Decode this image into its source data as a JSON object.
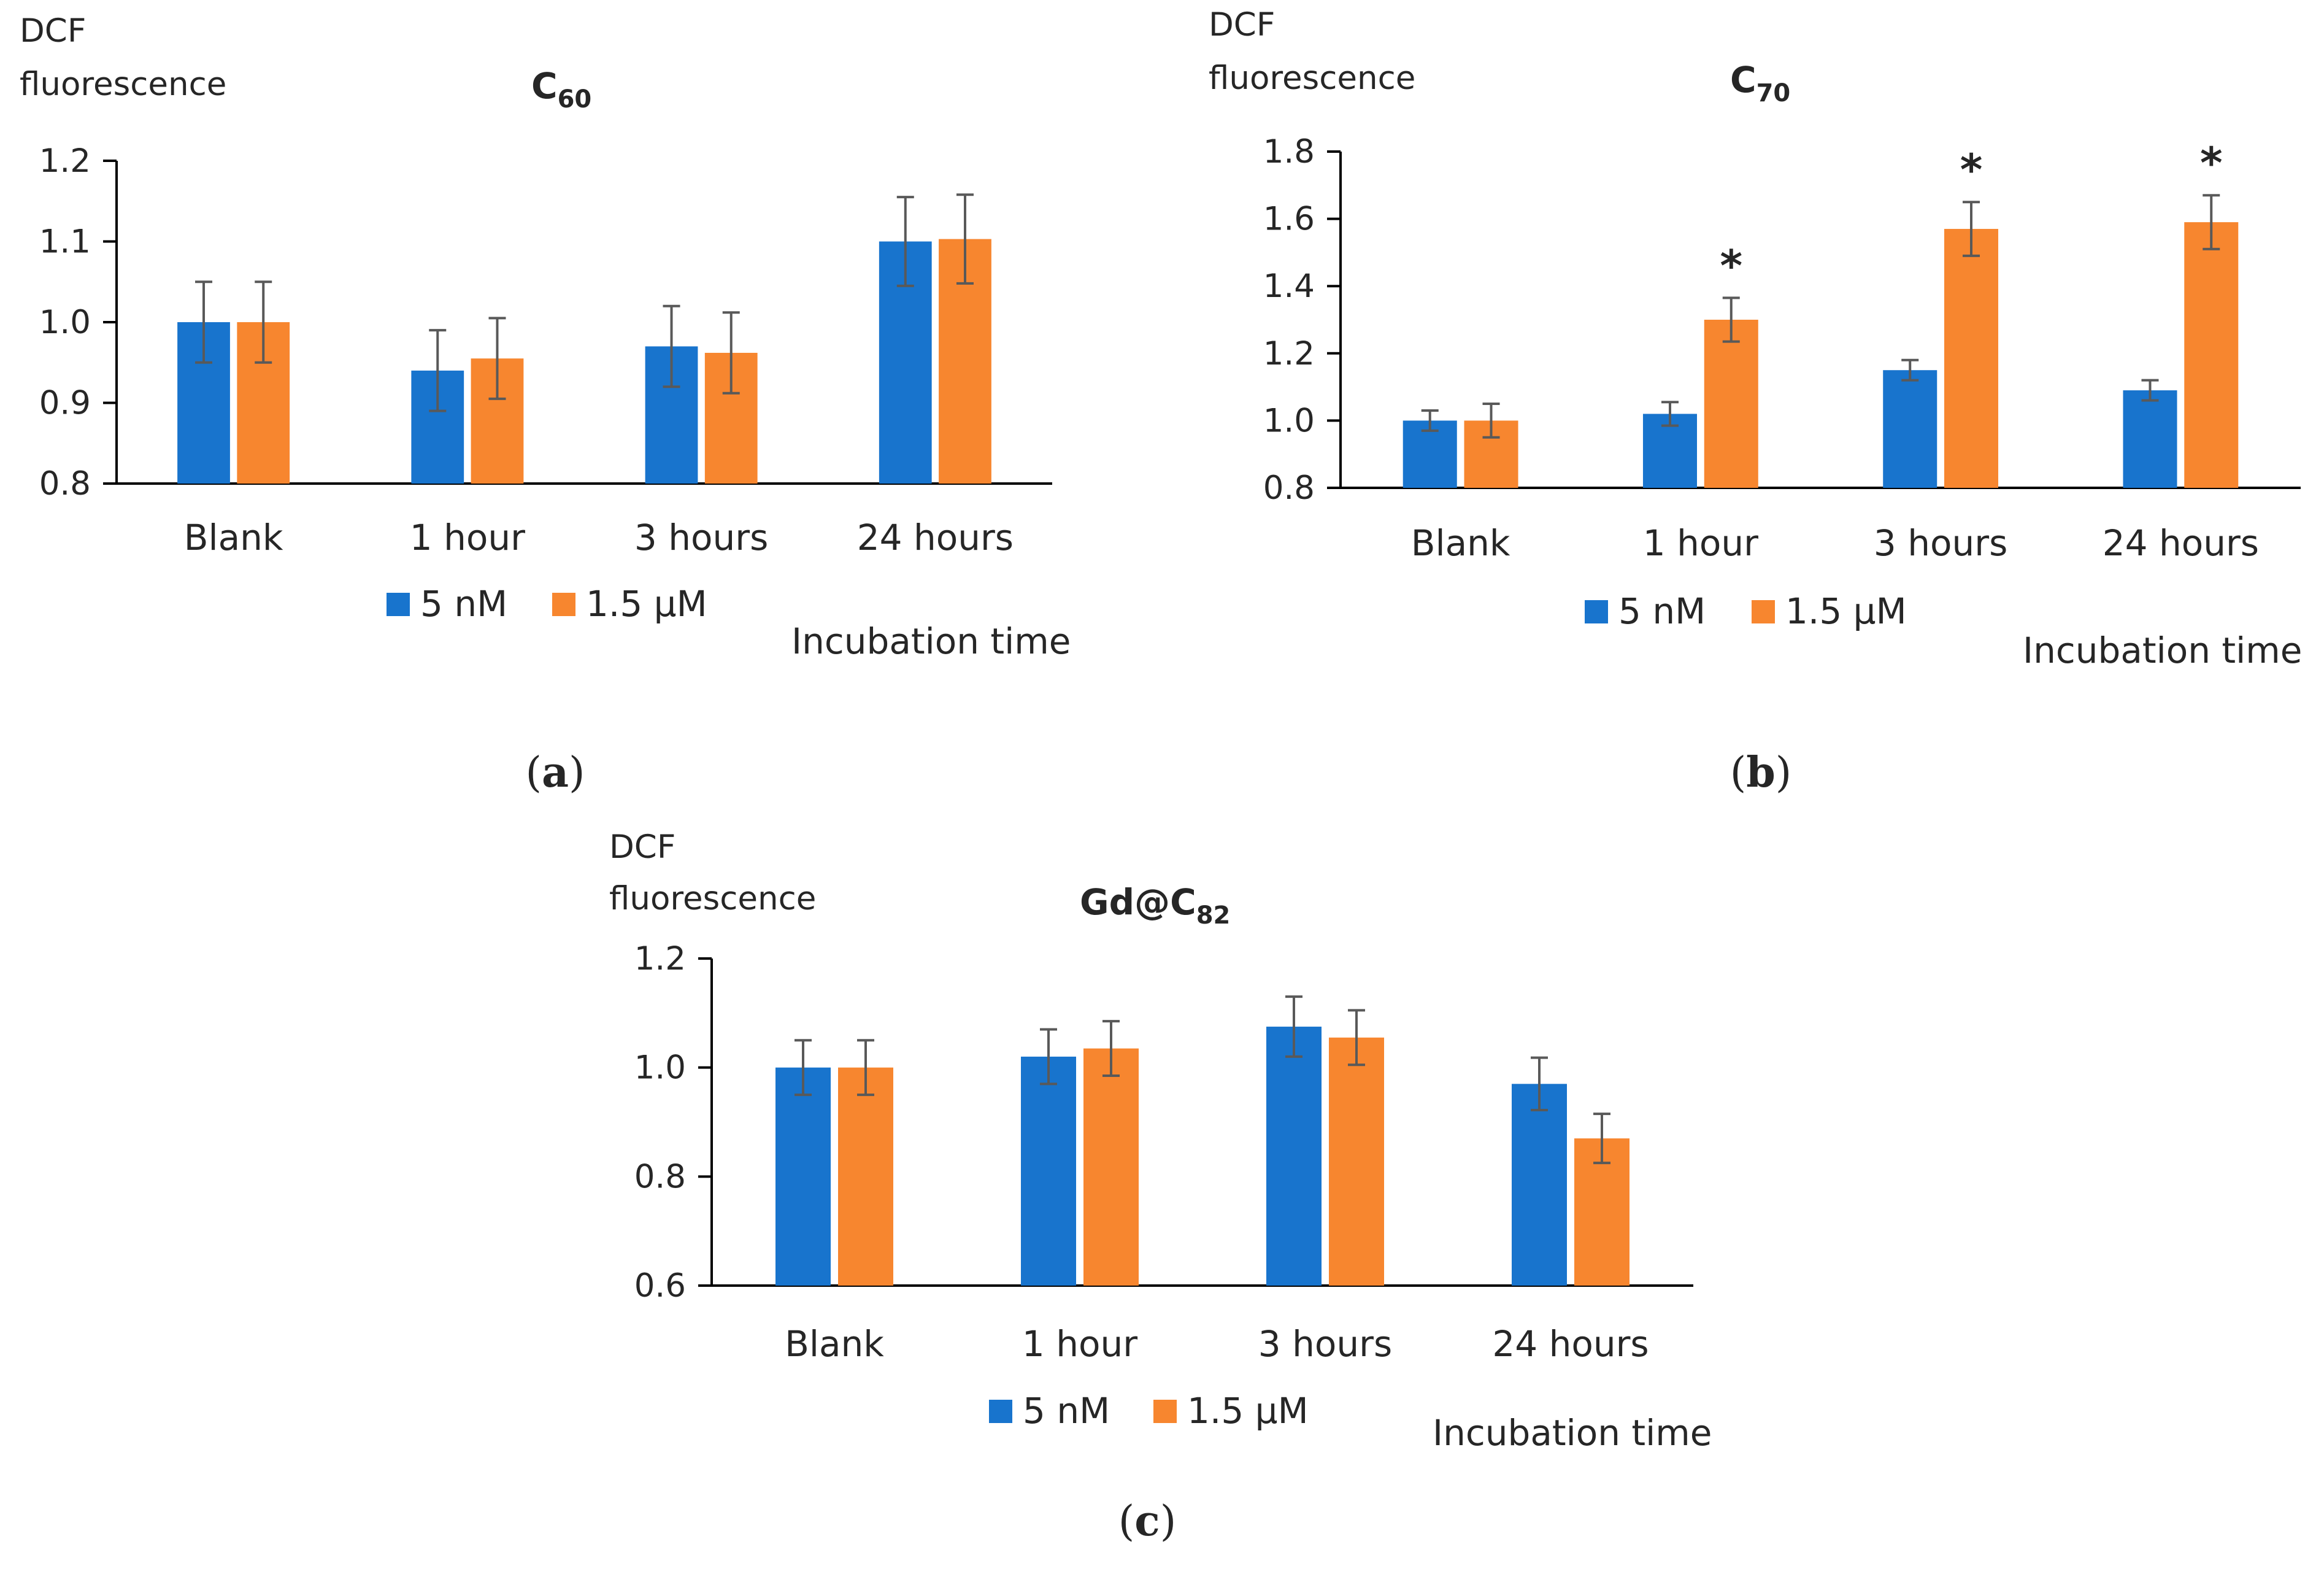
{
  "colors": {
    "series_5nM": "#1874CD",
    "series_1_5uM": "#F7862F",
    "axis": "#000000",
    "errorbar": "#595959"
  },
  "chart_data": [
    {
      "type": "bar",
      "panel_label": "a",
      "title": "C",
      "title_subscript": "60",
      "ylabel_line1": "DCF",
      "ylabel_line2": "fluorescence",
      "xlabel": "Incubation time",
      "categories": [
        "Blank",
        "1 hour",
        "3 hours",
        "24 hours"
      ],
      "ylim": [
        0.8,
        1.2
      ],
      "yticks": [
        "0.8",
        "0.9",
        "1.0",
        "1.1",
        "1.2"
      ],
      "legend_position": "bottom",
      "grid": false,
      "series": [
        {
          "name": "5 nM",
          "values": [
            1.0,
            0.94,
            0.97,
            1.1
          ],
          "errors": [
            0.05,
            0.05,
            0.05,
            0.055
          ]
        },
        {
          "name": "1.5  μM",
          "values": [
            1.0,
            0.955,
            0.962,
            1.103
          ],
          "errors": [
            0.05,
            0.05,
            0.05,
            0.055
          ]
        }
      ],
      "significance": [
        [
          false,
          false,
          false,
          false
        ],
        [
          false,
          false,
          false,
          false
        ]
      ],
      "significance_marker": "*"
    },
    {
      "type": "bar",
      "panel_label": "b",
      "title": "C",
      "title_subscript": "70",
      "ylabel_line1": "DCF",
      "ylabel_line2": "fluorescence",
      "xlabel": "Incubation time",
      "categories": [
        "Blank",
        "1 hour",
        "3 hours",
        "24 hours"
      ],
      "ylim": [
        0.8,
        1.8
      ],
      "yticks": [
        "0.8",
        "1.0",
        "1.2",
        "1.4",
        "1.6",
        "1.8"
      ],
      "legend_position": "bottom",
      "grid": false,
      "series": [
        {
          "name": "5 nM",
          "values": [
            1.0,
            1.02,
            1.15,
            1.09
          ],
          "errors": [
            0.03,
            0.035,
            0.03,
            0.03
          ]
        },
        {
          "name": "1.5  μM",
          "values": [
            1.0,
            1.3,
            1.57,
            1.59
          ],
          "errors": [
            0.05,
            0.065,
            0.08,
            0.08
          ]
        }
      ],
      "significance": [
        [
          false,
          false,
          false,
          false
        ],
        [
          false,
          true,
          true,
          true
        ]
      ],
      "significance_marker": "*"
    },
    {
      "type": "bar",
      "panel_label": "c",
      "title": "Gd@C",
      "title_subscript": "82",
      "ylabel_line1": "DCF",
      "ylabel_line2": "fluorescence",
      "xlabel": "Incubation time",
      "categories": [
        "Blank",
        "1 hour",
        "3 hours",
        "24 hours"
      ],
      "ylim": [
        0.6,
        1.2
      ],
      "yticks": [
        "0.6",
        "0.8",
        "1.0",
        "1.2"
      ],
      "legend_position": "bottom",
      "grid": false,
      "series": [
        {
          "name": "5 nM",
          "values": [
            1.0,
            1.02,
            1.075,
            0.97
          ],
          "errors": [
            0.05,
            0.05,
            0.055,
            0.048
          ]
        },
        {
          "name": "1.5  μM",
          "values": [
            1.0,
            1.035,
            1.055,
            0.87
          ],
          "errors": [
            0.05,
            0.05,
            0.05,
            0.045
          ]
        }
      ],
      "significance": [
        [
          false,
          false,
          false,
          false
        ],
        [
          false,
          false,
          false,
          false
        ]
      ],
      "significance_marker": "*"
    }
  ]
}
